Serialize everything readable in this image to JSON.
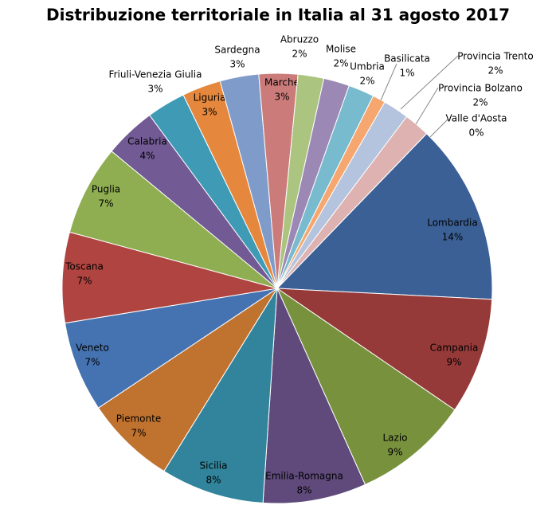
{
  "chart_data": {
    "type": "pie",
    "title": "Distribuzione territoriale  in Italia al 31 agosto 2017",
    "categories": [
      "Lombardia",
      "Campania",
      "Lazio",
      "Emilia-Romagna",
      "Sicilia",
      "Piemonte",
      "Veneto",
      "Toscana",
      "Puglia",
      "Calabria",
      "Friuli-Venezia Giulia",
      "Liguria",
      "Sardegna",
      "Marche",
      "Abruzzo",
      "Molise",
      "Umbria",
      "Basilicata",
      "Provincia Trento",
      "Provincia Bolzano",
      "Valle d'Aosta"
    ],
    "values": [
      14,
      9,
      9,
      8,
      8,
      7,
      7,
      7,
      7,
      4,
      3,
      3,
      3,
      3,
      2,
      2,
      2,
      1,
      2,
      2,
      0
    ],
    "value_labels": [
      "14%",
      "9%",
      "9%",
      "8%",
      "8%",
      "7%",
      "7%",
      "7%",
      "7%",
      "4%",
      "3%",
      "3%",
      "3%",
      "3%",
      "2%",
      "2%",
      "2%",
      "1%",
      "2%",
      "2%",
      "0%"
    ],
    "colors": [
      "#3b6096",
      "#953a39",
      "#77913d",
      "#5f4a7b",
      "#31849b",
      "#c0722f",
      "#4572b0",
      "#b04440",
      "#8fae51",
      "#725a94",
      "#3e9ab5",
      "#e5873c",
      "#7f9bc9",
      "#cb7b79",
      "#abc47f",
      "#9b88b5",
      "#78bace",
      "#f5a76f",
      "#b4c3de",
      "#ddb2b1",
      "#c9d8a9"
    ]
  }
}
